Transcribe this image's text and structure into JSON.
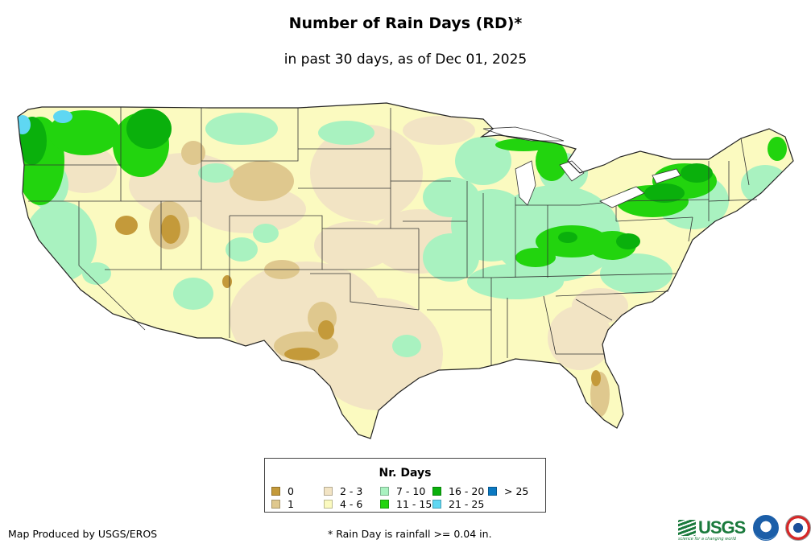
{
  "title": "Number of Rain Days (RD)*",
  "subtitle": "in past 30 days, as of Dec 01, 2025",
  "legend": {
    "title": "Nr. Days",
    "items": [
      {
        "label": "0",
        "color": "#c49a3a"
      },
      {
        "label": "1",
        "color": "#dfc88e"
      },
      {
        "label": "2 - 3",
        "color": "#f2e4c4"
      },
      {
        "label": "4 - 6",
        "color": "#fbfac0"
      },
      {
        "label": "7 - 10",
        "color": "#a9f2c0"
      },
      {
        "label": "11 - 15",
        "color": "#22d40e"
      },
      {
        "label": "16 - 20",
        "color": "#0ab00c"
      },
      {
        "label": "21 - 25",
        "color": "#5fd7f2"
      },
      {
        "label": "> 25",
        "color": "#0b79c2"
      }
    ]
  },
  "footer": {
    "credit": "Map Produced by USGS/EROS",
    "note": "* Rain Day is rainfall >= 0.04 in."
  },
  "logos": {
    "usgs_text": "USGS",
    "usgs_tagline": "science for a changing world"
  }
}
